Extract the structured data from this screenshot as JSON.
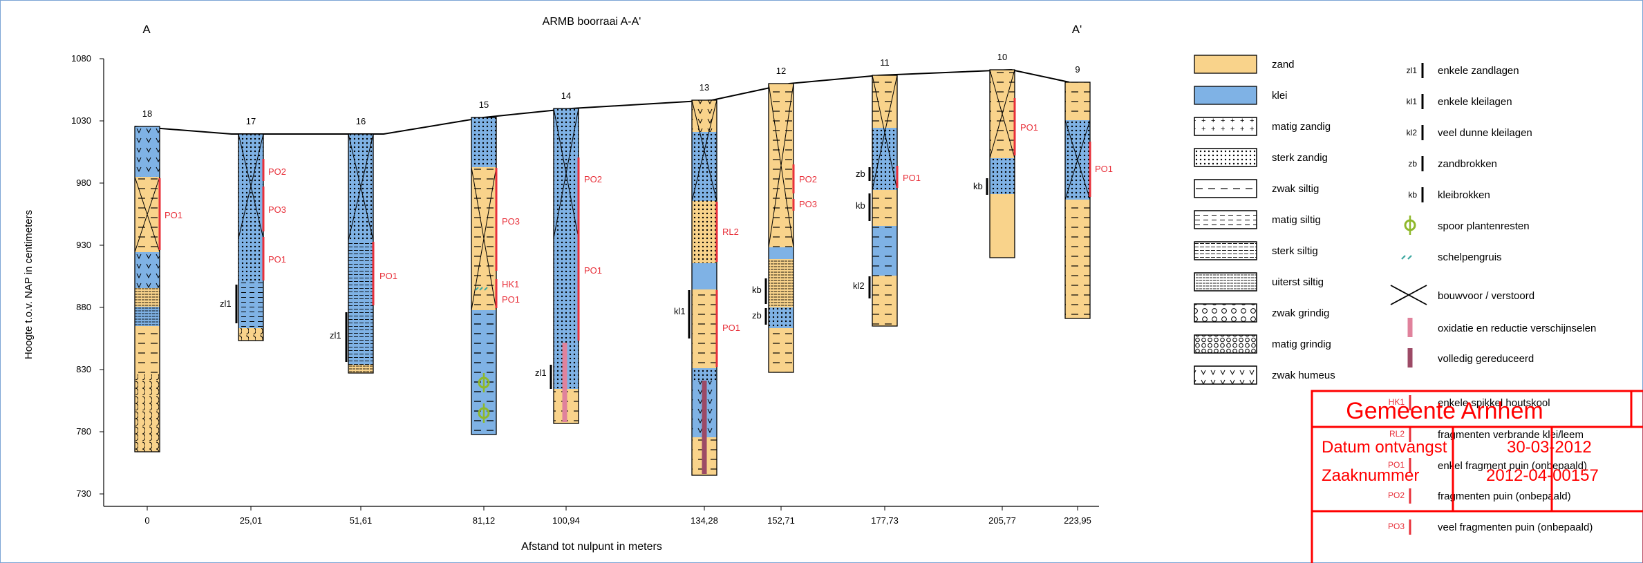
{
  "title": "ARMB boorraai A-A'",
  "section_start": "A",
  "section_end": "A'",
  "y_axis": {
    "label": "Hoogte t.o.v. NAP in centimeters",
    "ticks": [
      "1080",
      "1030",
      "980",
      "930",
      "880",
      "830",
      "780",
      "730"
    ]
  },
  "x_axis": {
    "label": "Afstand tot nulpunt in meters"
  },
  "boreholes": [
    {
      "id": "18",
      "distance": "0"
    },
    {
      "id": "17",
      "distance": "25,01"
    },
    {
      "id": "16",
      "distance": "51,61"
    },
    {
      "id": "15",
      "distance": "81,12"
    },
    {
      "id": "14",
      "distance": "100,94"
    },
    {
      "id": "13",
      "distance": "134,28"
    },
    {
      "id": "12",
      "distance": "152,71"
    },
    {
      "id": "11",
      "distance": "177,73"
    },
    {
      "id": "10",
      "distance": "205,77"
    },
    {
      "id": "9",
      "distance": "223,95"
    }
  ],
  "annotations": {
    "po1": "PO1",
    "po2": "PO2",
    "po3": "PO3",
    "hk1": "HK1",
    "rl2": "RL2",
    "zl1": "zl1",
    "kl1": "kl1",
    "kl2": "kl2",
    "kb": "kb",
    "zb": "zb"
  },
  "legend_left": [
    {
      "pattern": "zand",
      "label": "zand"
    },
    {
      "pattern": "klei",
      "label": "klei"
    },
    {
      "pattern": "matig-zandig",
      "label": "matig zandig"
    },
    {
      "pattern": "sterk-zandig",
      "label": "sterk zandig"
    },
    {
      "pattern": "zwak-siltig",
      "label": "zwak siltig"
    },
    {
      "pattern": "matig-siltig",
      "label": "matig siltig"
    },
    {
      "pattern": "sterk-siltig",
      "label": "sterk siltig"
    },
    {
      "pattern": "uiterst-siltig",
      "label": "uiterst siltig"
    },
    {
      "pattern": "zwak-grindig",
      "label": "zwak grindig"
    },
    {
      "pattern": "matig-grindig",
      "label": "matig grindig"
    },
    {
      "pattern": "zwak-humeus",
      "label": "zwak humeus"
    }
  ],
  "legend_right": [
    {
      "code": "zl1",
      "label": "enkele zandlagen"
    },
    {
      "code": "kl1",
      "label": "enkele kleilagen"
    },
    {
      "code": "kl2",
      "label": "veel dunne kleilagen"
    },
    {
      "code": "zb",
      "label": "zandbrokken"
    },
    {
      "code": "kb",
      "label": "kleibrokken"
    },
    {
      "code": "",
      "label": "spoor plantenresten"
    },
    {
      "code": "",
      "label": "schelpengruis"
    },
    {
      "code": "",
      "label": "bouwvoor / verstoord"
    },
    {
      "code": "",
      "label": "oxidatie en reductie verschijnselen"
    },
    {
      "code": "",
      "label": "volledig gereduceerd"
    },
    {
      "code": "HK1",
      "label": "enkele spikkel houtskool"
    },
    {
      "code": "RL2",
      "label": "fragmenten verbrande klei/leem"
    },
    {
      "code": "PO1",
      "label": "enkel fragment puin (onbepaald)"
    },
    {
      "code": "PO2",
      "label": "fragmenten puin (onbepaald)"
    },
    {
      "code": "PO3",
      "label": "veel fragmenten puin (onbepaald)"
    }
  ],
  "stamp": {
    "org": "Gemeente Arnhem",
    "date_label": "Datum ontvangst",
    "date_value": "30-03-2012",
    "case_label": "Zaaknummer",
    "case_value": "2012-04-00157"
  },
  "colors": {
    "zand": "#f9d38b",
    "klei": "#7fb2e5",
    "annotation_red": "#e8303a",
    "stamp_red": "#ff0000",
    "oxidation": "#e0829c",
    "reduced": "#9c4a66",
    "plant": "#8fb82b",
    "shell": "#3aa7a0"
  }
}
